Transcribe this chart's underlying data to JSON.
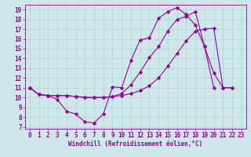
{
  "xlabel": "Windchill (Refroidissement éolien,°C)",
  "background_color": "#cce8e8",
  "line_color": "#990099",
  "xlim": [
    -0.5,
    23.5
  ],
  "ylim": [
    6.8,
    19.5
  ],
  "xticks": [
    0,
    1,
    2,
    3,
    4,
    5,
    6,
    7,
    8,
    9,
    10,
    11,
    12,
    13,
    14,
    15,
    16,
    17,
    18,
    19,
    20,
    21,
    22,
    23
  ],
  "yticks": [
    7,
    8,
    9,
    10,
    11,
    12,
    13,
    14,
    15,
    16,
    17,
    18,
    19
  ],
  "line1_x": [
    0,
    1,
    2,
    3,
    4,
    5,
    6,
    7,
    8,
    9,
    10,
    11,
    12,
    13,
    14,
    15,
    16,
    17,
    18,
    19,
    20,
    21,
    22
  ],
  "line1_y": [
    11,
    10.3,
    10.2,
    9.8,
    8.6,
    8.3,
    7.5,
    7.4,
    8.3,
    11.1,
    11.0,
    13.8,
    15.9,
    16.1,
    18.1,
    18.8,
    19.2,
    18.5,
    17.4,
    15.2,
    12.5,
    11.0,
    11.0
  ],
  "line2_x": [
    0,
    1,
    2,
    3,
    4,
    5,
    6,
    7,
    8,
    9,
    10,
    11,
    12,
    13,
    14,
    15,
    16,
    17,
    18,
    19,
    20,
    21,
    22
  ],
  "line2_y": [
    11,
    10.3,
    10.2,
    10.2,
    10.2,
    10.1,
    10.0,
    10.0,
    10.0,
    10.1,
    10.2,
    10.4,
    10.7,
    11.2,
    12.0,
    13.2,
    14.5,
    15.8,
    16.8,
    17.0,
    17.1,
    11.0,
    11.0
  ],
  "line3_x": [
    0,
    1,
    2,
    3,
    4,
    5,
    6,
    7,
    8,
    9,
    10,
    11,
    12,
    13,
    14,
    15,
    16,
    17,
    18,
    19,
    20
  ],
  "line3_y": [
    11,
    10.3,
    10.2,
    10.2,
    10.2,
    10.1,
    10.0,
    10.0,
    10.0,
    10.1,
    10.4,
    11.3,
    12.6,
    14.1,
    15.2,
    16.8,
    18.0,
    18.3,
    18.8,
    15.2,
    11.0
  ],
  "xlabel_fontsize": 5.5,
  "tick_fontsize": 5.5
}
